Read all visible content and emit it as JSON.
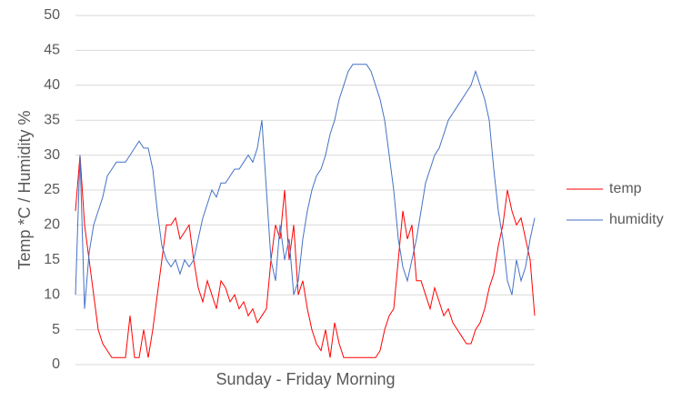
{
  "chart_data": {
    "type": "line",
    "y_label": "Temp *C / Humidity %",
    "x_label": "Sunday - Friday Morning",
    "ylim": [
      0,
      50
    ],
    "yticks": [
      0,
      5,
      10,
      15,
      20,
      25,
      30,
      35,
      40,
      45,
      50
    ],
    "grid": true,
    "legend": "right",
    "series": [
      {
        "name": "temp",
        "color": "#ff0000",
        "values": [
          22,
          30,
          20,
          15,
          10,
          5,
          3,
          2,
          1,
          1,
          1,
          1,
          7,
          1,
          1,
          5,
          1,
          5,
          10,
          15,
          20,
          20,
          21,
          18,
          19,
          20,
          15,
          11,
          9,
          12,
          10,
          8,
          12,
          11,
          9,
          10,
          8,
          9,
          7,
          8,
          6,
          7,
          8,
          15,
          20,
          18,
          25,
          15,
          20,
          10,
          12,
          8,
          5,
          3,
          2,
          5,
          1,
          6,
          3,
          1,
          1,
          1,
          1,
          1,
          1,
          1,
          1,
          2,
          5,
          7,
          8,
          15,
          22,
          18,
          20,
          12,
          12,
          10,
          8,
          11,
          9,
          7,
          8,
          6,
          5,
          4,
          3,
          3,
          5,
          6,
          8,
          11,
          13,
          17,
          20,
          25,
          22,
          20,
          21,
          18,
          15,
          7
        ]
      },
      {
        "name": "humidity",
        "color": "#4472c4",
        "values": [
          10,
          30,
          8,
          16,
          20,
          22,
          24,
          27,
          28,
          29,
          29,
          29,
          30,
          31,
          32,
          31,
          31,
          28,
          22,
          17,
          15,
          14,
          15,
          13,
          15,
          14,
          15,
          18,
          21,
          23,
          25,
          24,
          26,
          26,
          27,
          28,
          28,
          29,
          30,
          29,
          31,
          35,
          25,
          15,
          12,
          20,
          15,
          18,
          10,
          12,
          18,
          22,
          25,
          27,
          28,
          30,
          33,
          35,
          38,
          40,
          42,
          43,
          43,
          43,
          43,
          42,
          40,
          38,
          35,
          30,
          25,
          18,
          14,
          12,
          15,
          18,
          22,
          26,
          28,
          30,
          31,
          33,
          35,
          36,
          37,
          38,
          39,
          40,
          42,
          40,
          38,
          35,
          28,
          22,
          18,
          12,
          10,
          15,
          12,
          14,
          18,
          21
        ]
      }
    ]
  }
}
